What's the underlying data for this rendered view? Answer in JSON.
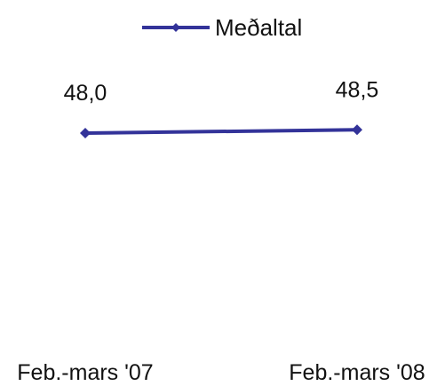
{
  "chart_data": {
    "type": "line",
    "categories": [
      "Feb.-mars '07",
      "Feb.-mars '08"
    ],
    "series": [
      {
        "name": "Meðaltal",
        "values": [
          48.0,
          48.5
        ],
        "data_labels": [
          "48,0",
          "48,5"
        ],
        "color": "#333399"
      }
    ],
    "legend": "top-center",
    "grid": false,
    "ylim": [
      20,
      60
    ]
  }
}
